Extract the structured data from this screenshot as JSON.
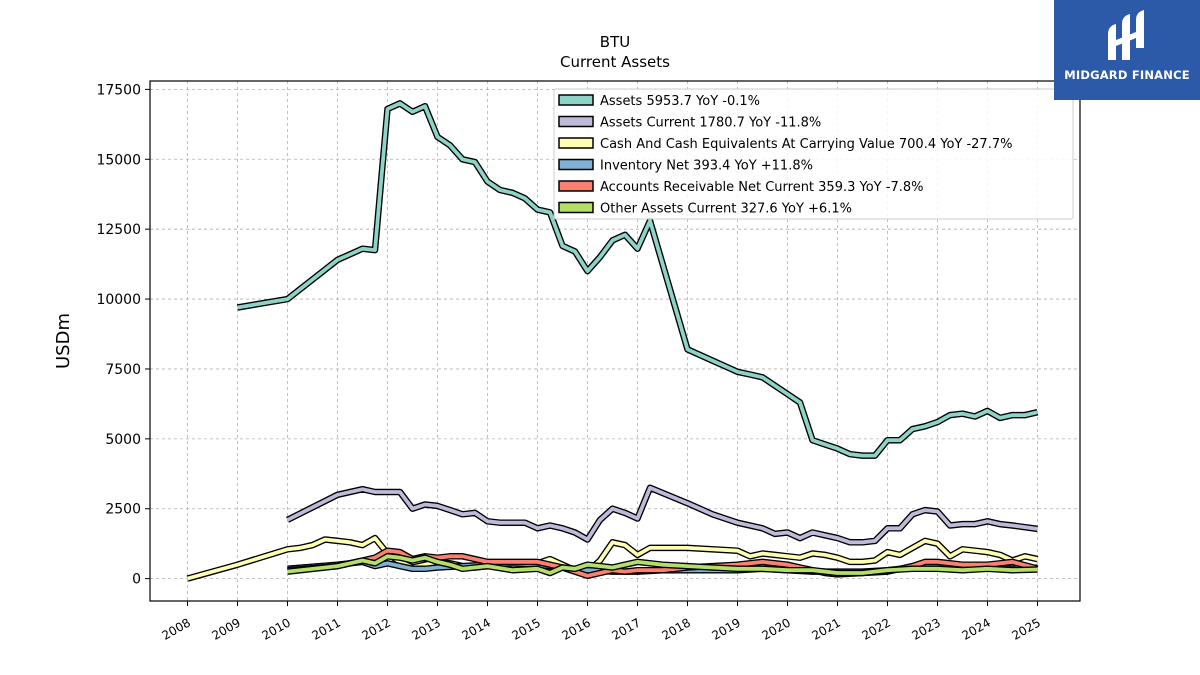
{
  "brand": {
    "name": "MIDGARD FINANCE",
    "color": "#2c5aa8"
  },
  "chart_data": {
    "type": "line",
    "title": "BTU",
    "subtitle": "Current  Assets",
    "xlabel": "",
    "ylabel": "USDm",
    "xlim": [
      2007.25,
      2025.85
    ],
    "ylim": [
      -800,
      17800
    ],
    "yticks": [
      0,
      2500,
      5000,
      7500,
      10000,
      12500,
      15000,
      17500
    ],
    "xticks": [
      2008,
      2009,
      2010,
      2011,
      2012,
      2013,
      2014,
      2015,
      2016,
      2017,
      2018,
      2019,
      2020,
      2021,
      2022,
      2023,
      2024,
      2025
    ],
    "grid": true,
    "legend_position": "top-right",
    "series": [
      {
        "name": "Assets",
        "legend": "Assets  5953.7 YoY -0.1%",
        "color": "#8dd3c7",
        "x": [
          2009.0,
          2010.0,
          2011.0,
          2011.25,
          2011.5,
          2011.75,
          2012.0,
          2012.25,
          2012.5,
          2012.75,
          2013.0,
          2013.25,
          2013.5,
          2013.75,
          2014.0,
          2014.25,
          2014.5,
          2014.75,
          2015.0,
          2015.25,
          2015.5,
          2015.75,
          2016.0,
          2016.25,
          2016.5,
          2016.75,
          2017.0,
          2017.25,
          2018.0,
          2018.25,
          2018.5,
          2018.75,
          2019.0,
          2019.25,
          2019.5,
          2019.75,
          2020.0,
          2020.25,
          2020.5,
          2020.75,
          2021.0,
          2021.25,
          2021.5,
          2021.75,
          2022.0,
          2022.25,
          2022.5,
          2022.75,
          2023.0,
          2023.25,
          2023.5,
          2023.75,
          2024.0,
          2024.25,
          2024.5,
          2024.75,
          2025.0
        ],
        "values": [
          9700,
          10000,
          11400,
          11600,
          11800,
          11750,
          16800,
          17000,
          16700,
          16900,
          15800,
          15500,
          15000,
          14900,
          14200,
          13900,
          13800,
          13600,
          13200,
          13100,
          11900,
          11700,
          11000,
          11500,
          12100,
          12300,
          11800,
          12800,
          8200,
          8000,
          7800,
          7600,
          7400,
          7300,
          7200,
          6900,
          6600,
          6300,
          4950,
          4800,
          4650,
          4450,
          4400,
          4400,
          4950,
          4950,
          5350,
          5450,
          5600,
          5850,
          5900,
          5800,
          6000,
          5750,
          5850,
          5850,
          5953.7
        ]
      },
      {
        "name": "Assets Current",
        "legend": "Assets Current  1780.7 YoY -11.8%",
        "color": "#bebada",
        "x": [
          2010.0,
          2011.0,
          2011.5,
          2011.75,
          2012.0,
          2012.25,
          2012.5,
          2012.75,
          2013.0,
          2013.25,
          2013.5,
          2013.75,
          2014.0,
          2014.25,
          2014.5,
          2014.75,
          2015.0,
          2015.25,
          2015.5,
          2015.75,
          2016.0,
          2016.25,
          2016.5,
          2016.75,
          2017.0,
          2017.25,
          2018.0,
          2018.5,
          2019.0,
          2019.5,
          2019.75,
          2020.0,
          2020.25,
          2020.5,
          2020.75,
          2021.0,
          2021.25,
          2021.5,
          2021.75,
          2022.0,
          2022.25,
          2022.5,
          2022.75,
          2023.0,
          2023.25,
          2023.5,
          2023.75,
          2024.0,
          2024.25,
          2024.5,
          2025.0
        ],
        "values": [
          2100,
          3000,
          3200,
          3100,
          3100,
          3100,
          2500,
          2650,
          2600,
          2450,
          2300,
          2350,
          2050,
          2000,
          2000,
          2000,
          1800,
          1900,
          1800,
          1650,
          1400,
          2100,
          2500,
          2350,
          2150,
          3250,
          2700,
          2300,
          2000,
          1800,
          1600,
          1650,
          1450,
          1650,
          1550,
          1450,
          1300,
          1300,
          1350,
          1800,
          1800,
          2300,
          2450,
          2400,
          1900,
          1950,
          1950,
          2050,
          1950,
          1900,
          1780.7
        ]
      },
      {
        "name": "Cash And Cash Equivalents At Carrying Value",
        "legend": "Cash And Cash Equivalents At Carrying Value  700.4 YoY -27.7%",
        "color": "#ffffb3",
        "x": [
          2008.0,
          2009.0,
          2010.0,
          2010.25,
          2010.5,
          2010.75,
          2011.0,
          2011.25,
          2011.5,
          2011.75,
          2012.0,
          2012.25,
          2012.5,
          2012.75,
          2013.0,
          2013.25,
          2013.5,
          2013.75,
          2014.0,
          2014.25,
          2014.5,
          2014.75,
          2015.0,
          2015.25,
          2015.5,
          2015.75,
          2016.0,
          2016.25,
          2016.5,
          2016.75,
          2017.0,
          2017.25,
          2018.0,
          2019.0,
          2019.25,
          2019.5,
          2019.75,
          2020.0,
          2020.25,
          2020.5,
          2020.75,
          2021.0,
          2021.25,
          2021.5,
          2021.75,
          2022.0,
          2022.25,
          2022.5,
          2022.75,
          2023.0,
          2023.25,
          2023.5,
          2023.75,
          2024.0,
          2024.25,
          2024.5,
          2024.75,
          2025.0
        ],
        "values": [
          0,
          500,
          1050,
          1100,
          1200,
          1400,
          1350,
          1300,
          1200,
          1450,
          900,
          600,
          400,
          500,
          600,
          550,
          450,
          400,
          450,
          400,
          450,
          500,
          550,
          700,
          500,
          300,
          250,
          650,
          1300,
          1200,
          850,
          1100,
          1100,
          1000,
          800,
          900,
          850,
          800,
          750,
          900,
          850,
          750,
          600,
          600,
          650,
          950,
          850,
          1100,
          1350,
          1250,
          800,
          1050,
          1000,
          950,
          850,
          650,
          800,
          700.4
        ]
      },
      {
        "name": "Inventory Net",
        "legend": "Inventory Net  393.4 YoY +11.8%",
        "color": "#80b1d3",
        "x": [
          2010.0,
          2011.0,
          2011.5,
          2011.75,
          2012.0,
          2012.25,
          2012.5,
          2012.75,
          2013.0,
          2013.5,
          2014.0,
          2014.5,
          2015.0,
          2015.5,
          2016.0,
          2016.5,
          2017.0,
          2017.5,
          2018.0,
          2019.0,
          2019.5,
          2020.0,
          2020.5,
          2021.0,
          2021.5,
          2022.0,
          2022.5,
          2023.0,
          2023.5,
          2024.0,
          2024.5,
          2025.0
        ],
        "values": [
          350,
          500,
          600,
          450,
          550,
          450,
          350,
          350,
          400,
          450,
          500,
          550,
          500,
          400,
          300,
          250,
          250,
          300,
          300,
          300,
          350,
          300,
          250,
          250,
          250,
          300,
          400,
          450,
          400,
          400,
          350,
          393.4
        ]
      },
      {
        "name": "Accounts Receivable Net Current",
        "legend": "Accounts Receivable Net Current  359.3 YoY -7.8%",
        "color": "#fb8072",
        "x": [
          2010.0,
          2011.0,
          2011.5,
          2011.75,
          2012.0,
          2012.25,
          2012.5,
          2012.75,
          2013.0,
          2013.25,
          2013.5,
          2013.75,
          2014.0,
          2014.5,
          2015.0,
          2015.5,
          2016.0,
          2016.25,
          2016.5,
          2016.75,
          2017.0,
          2017.5,
          2018.0,
          2018.5,
          2019.0,
          2019.5,
          2020.0,
          2020.25,
          2020.5,
          2020.75,
          2021.0,
          2021.5,
          2022.0,
          2022.5,
          2022.75,
          2023.0,
          2023.5,
          2024.0,
          2024.25,
          2024.5,
          2025.0
        ],
        "values": [
          300,
          450,
          650,
          750,
          1000,
          950,
          700,
          800,
          750,
          800,
          800,
          700,
          600,
          600,
          600,
          400,
          100,
          200,
          300,
          250,
          300,
          300,
          400,
          450,
          500,
          600,
          500,
          400,
          300,
          200,
          150,
          200,
          250,
          450,
          600,
          600,
          500,
          500,
          550,
          600,
          359.3
        ]
      },
      {
        "name": "Other Assets Current",
        "legend": "Other Assets Current  327.6 YoY +6.1%",
        "color": "#b3de69",
        "x": [
          2010.0,
          2011.0,
          2011.25,
          2011.5,
          2011.75,
          2012.0,
          2012.25,
          2012.5,
          2012.75,
          2013.0,
          2013.25,
          2013.5,
          2014.0,
          2014.5,
          2015.0,
          2015.25,
          2015.5,
          2015.75,
          2016.0,
          2016.5,
          2017.0,
          2017.5,
          2018.0,
          2018.5,
          2019.0,
          2019.5,
          2020.0,
          2020.5,
          2021.0,
          2021.5,
          2022.0,
          2022.5,
          2023.0,
          2023.5,
          2024.0,
          2024.5,
          2025.0
        ],
        "values": [
          250,
          450,
          550,
          650,
          550,
          800,
          750,
          650,
          750,
          600,
          500,
          350,
          450,
          300,
          350,
          200,
          400,
          350,
          500,
          400,
          600,
          500,
          450,
          400,
          350,
          350,
          300,
          300,
          200,
          200,
          300,
          350,
          350,
          300,
          350,
          300,
          327.6
        ]
      }
    ]
  }
}
